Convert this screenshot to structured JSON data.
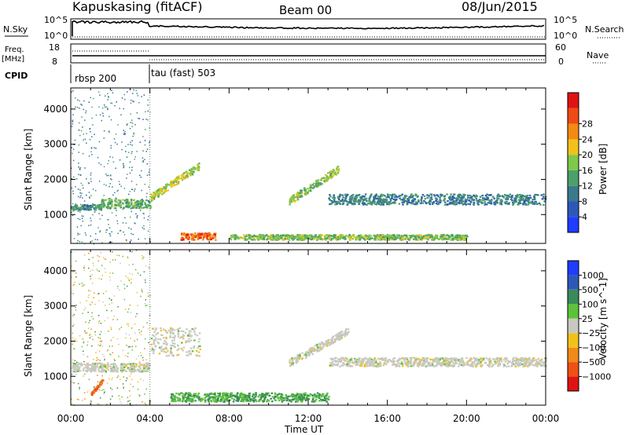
{
  "header": {
    "station": "Kapuskasing (fitACF)",
    "beam": "Beam 00",
    "date": "08/Jun/2015"
  },
  "left_labels": {
    "nsky": "N.Sky",
    "freq": "Freq.",
    "freq_unit": "[MHz]",
    "cpid": "CPID"
  },
  "right_labels": {
    "nsearch": "N.Search",
    "nave": "Nave"
  },
  "nsky_axis": {
    "top": "10^5",
    "bottom": "10^0"
  },
  "freq_axis": {
    "top": "18",
    "bottom": "8"
  },
  "nave_axis": {
    "top": "60",
    "bottom": "0"
  },
  "cpid": {
    "first": "rbsp 200",
    "second": "tau (fast) 503"
  },
  "colors": {
    "panel_border": "#000000",
    "grid": "#000000",
    "background": "#ffffff"
  },
  "chart_data": [
    {
      "type": "heatmap",
      "title": "",
      "xlabel": "Time UT",
      "ylabel": "Slant Range [km]",
      "x_ticks": [
        "00:00",
        "04:00",
        "08:00",
        "12:00",
        "16:00",
        "20:00",
        "00:00"
      ],
      "y_ticks": [
        1000,
        2000,
        3000,
        4000
      ],
      "xlim_hours": [
        0,
        24
      ],
      "ylim_km": [
        180,
        4600
      ],
      "colorbar": {
        "label": "Power [dB]",
        "ticks": [
          4,
          8,
          12,
          16,
          20,
          24,
          28
        ],
        "range": [
          0,
          30
        ],
        "colors": [
          "#1f3cff",
          "#2f57b8",
          "#3a7a8c",
          "#4ca06a",
          "#7fc84a",
          "#f2c21a",
          "#f38a12",
          "#ef4a14",
          "#e01313"
        ]
      },
      "structures": [
        {
          "t0": 0.0,
          "t1": 1.5,
          "r0": 1150,
          "r1": 1300,
          "value": 10
        },
        {
          "t0": 1.5,
          "t1": 4.0,
          "r0": 1200,
          "r1": 1450,
          "value": 13
        },
        {
          "t0": 4.0,
          "t1": 6.5,
          "r0": 1500,
          "r1": 2400,
          "value": 16
        },
        {
          "t0": 5.5,
          "t1": 7.3,
          "r0": 300,
          "r1": 500,
          "value": 24
        },
        {
          "t0": 11.0,
          "t1": 13.5,
          "r0": 1400,
          "r1": 2300,
          "value": 14
        },
        {
          "t0": 13.0,
          "t1": 24.0,
          "r0": 1300,
          "r1": 1600,
          "value": 9
        },
        {
          "t0": 8.0,
          "t1": 20.0,
          "r0": 300,
          "r1": 450,
          "value": 14
        }
      ]
    },
    {
      "type": "heatmap",
      "title": "",
      "xlabel": "Time UT",
      "ylabel": "Slant Range [km]",
      "x_ticks": [
        "00:00",
        "04:00",
        "08:00",
        "12:00",
        "16:00",
        "20:00",
        "00:00"
      ],
      "y_ticks": [
        1000,
        2000,
        3000,
        4000
      ],
      "xlim_hours": [
        0,
        24
      ],
      "ylim_km": [
        180,
        4600
      ],
      "colorbar": {
        "label": "Velocity [m s^-1]",
        "ticks": [
          "1000",
          "500",
          "100",
          "25",
          "−25",
          "−100",
          "−500",
          "−1000"
        ],
        "colors": [
          "#1f3cff",
          "#2f57b8",
          "#3a8a5a",
          "#5cc23a",
          "#c8c8c0",
          "#f2c21a",
          "#f08a18",
          "#ef5014",
          "#e01313"
        ]
      },
      "structures": [
        {
          "t0": 0.0,
          "t1": 4.0,
          "r0": 1150,
          "r1": 1400,
          "value": 0
        },
        {
          "t0": 4.0,
          "t1": 6.5,
          "r0": 1600,
          "r1": 2400,
          "value": 0
        },
        {
          "t0": 1.0,
          "t1": 1.6,
          "r0": 500,
          "r1": 900,
          "value": -500
        },
        {
          "t0": 5.0,
          "t1": 13.0,
          "r0": 300,
          "r1": 550,
          "value": 100
        },
        {
          "t0": 11.0,
          "t1": 14.0,
          "r0": 1400,
          "r1": 2300,
          "value": 0
        },
        {
          "t0": 13.0,
          "t1": 24.0,
          "r0": 1300,
          "r1": 1550,
          "value": 0
        }
      ]
    }
  ]
}
